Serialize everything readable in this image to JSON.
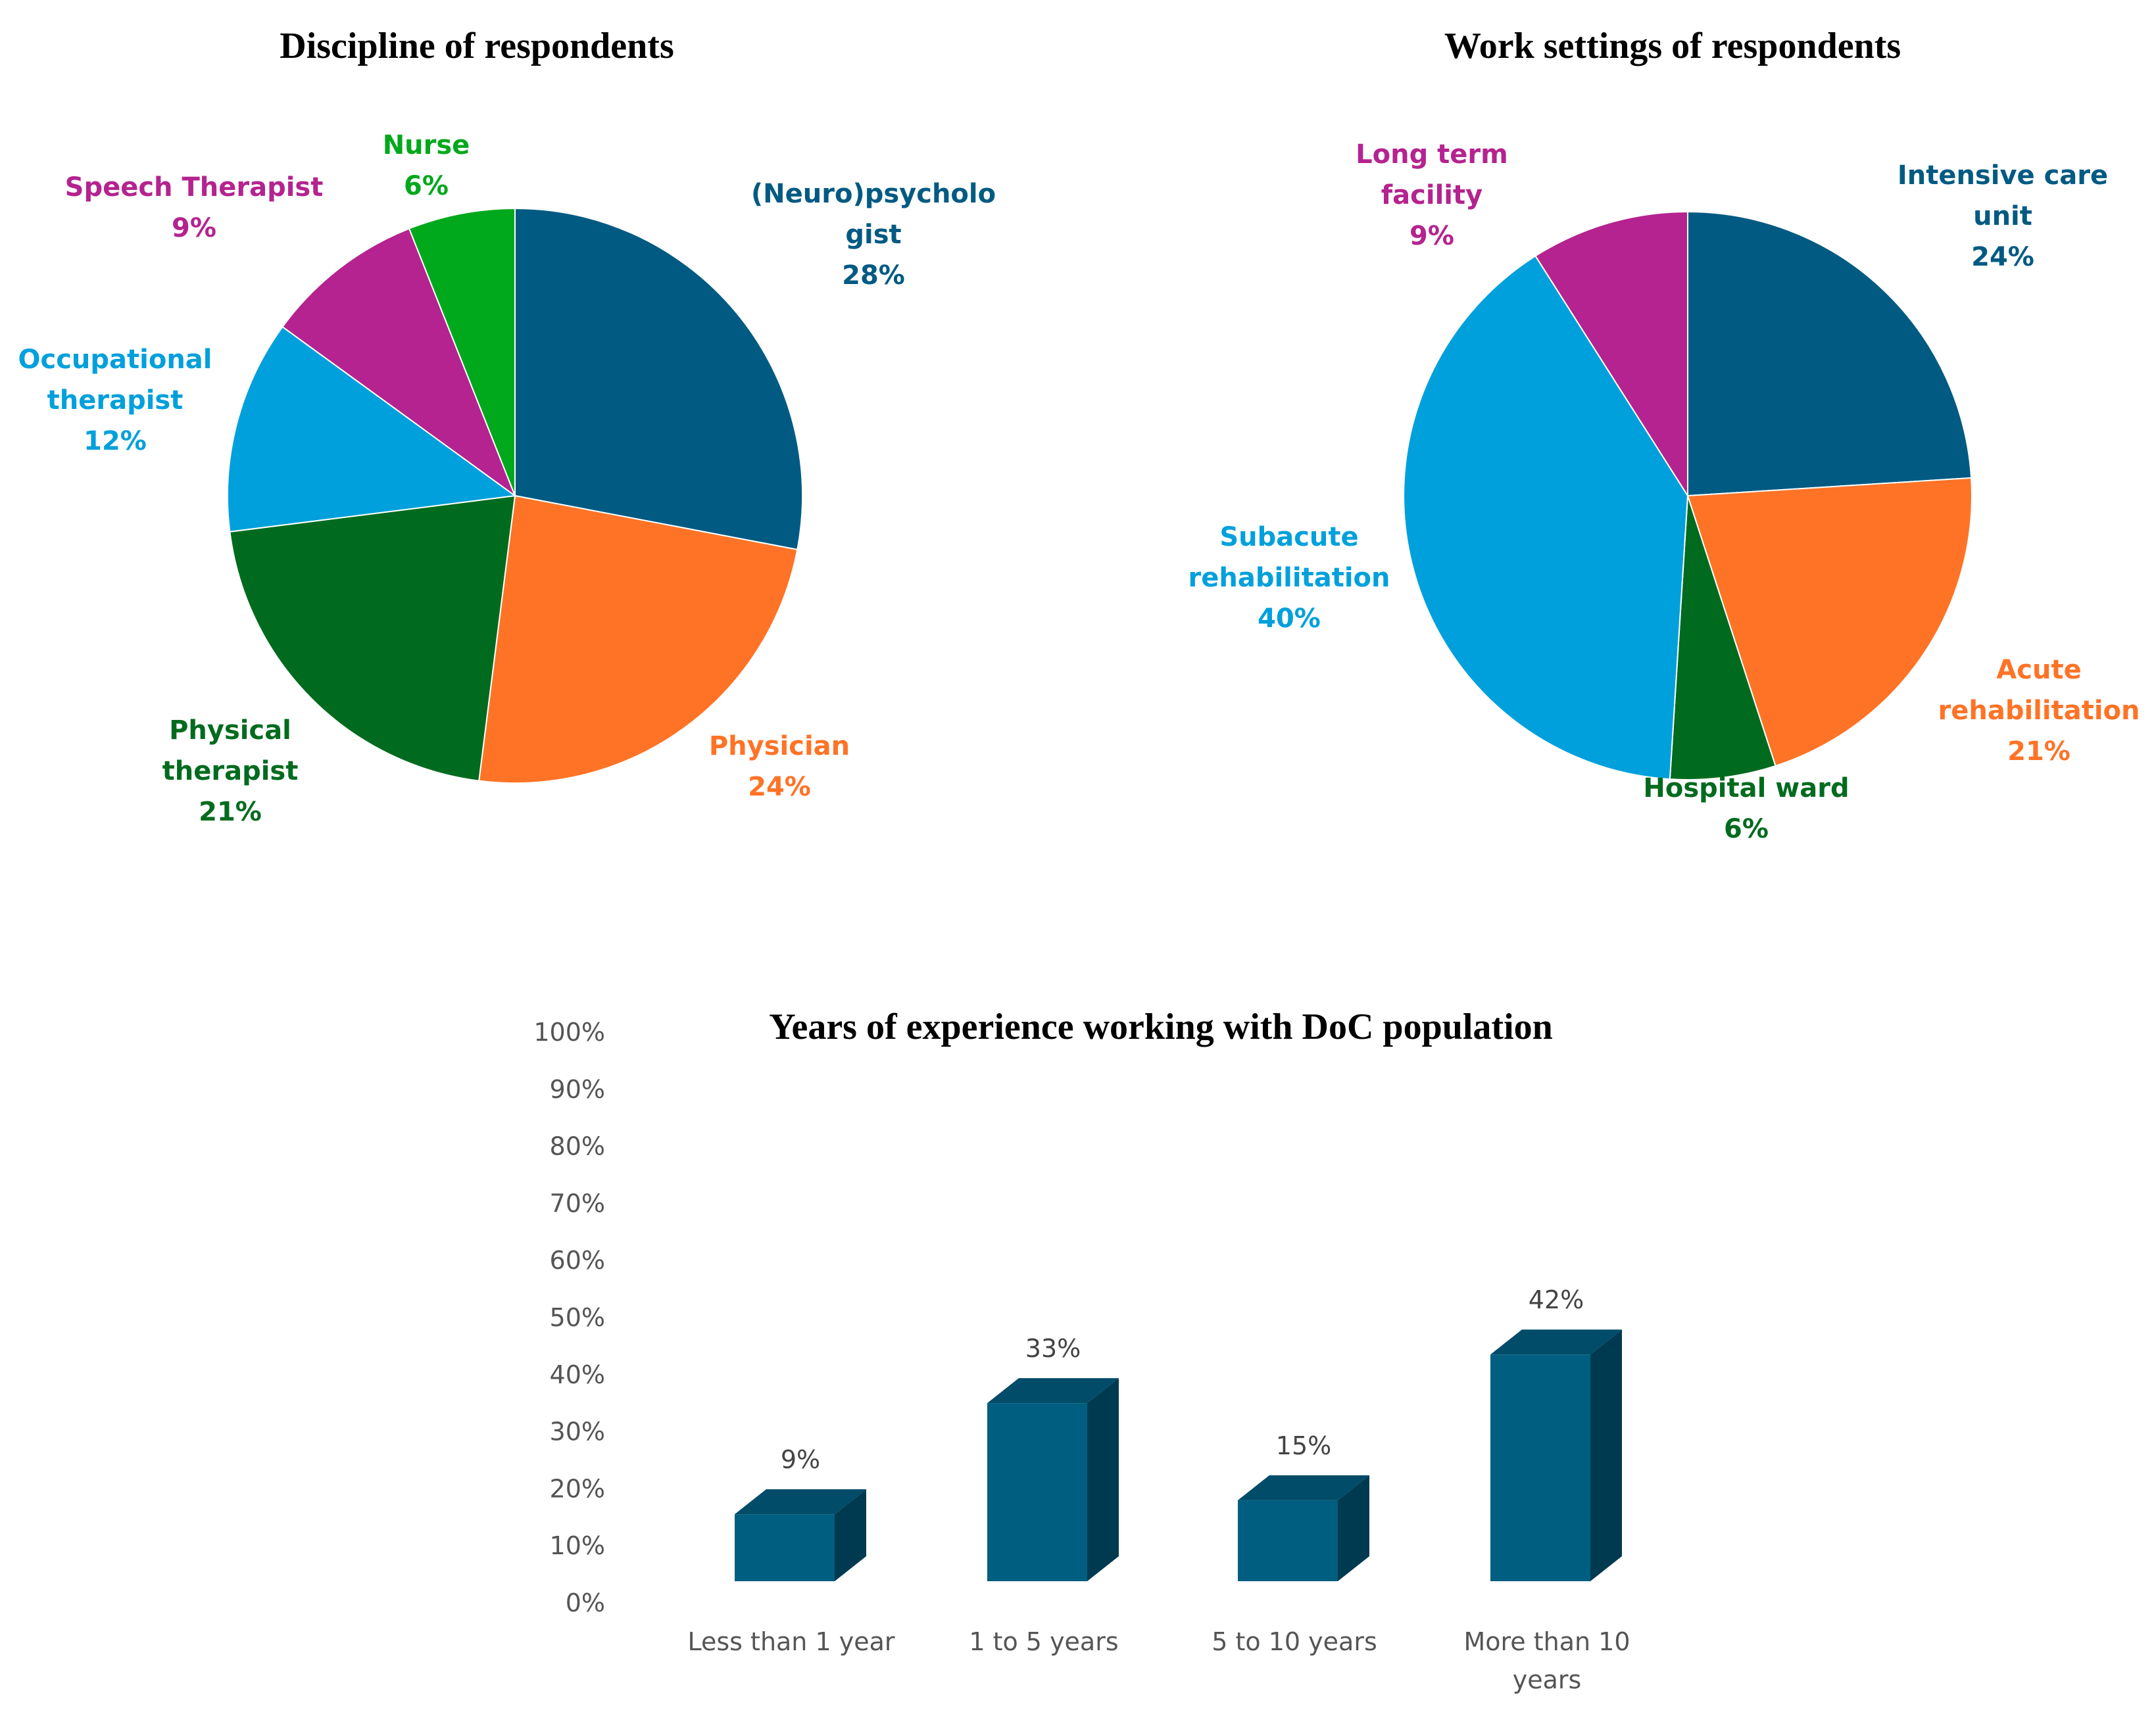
{
  "chart_data": [
    {
      "type": "pie",
      "title": "Discipline of respondents",
      "slices": [
        {
          "name": "Neuropsychologist",
          "label_lines": [
            "(Neuro)psycholo",
            "gist"
          ],
          "value_text": "28%",
          "value": 28,
          "color": "#005A82"
        },
        {
          "name": "Physician",
          "label_lines": [
            "Physician"
          ],
          "value_text": "24%",
          "value": 24,
          "color": "#FF7326"
        },
        {
          "name": "Physical therapist",
          "label_lines": [
            "Physical",
            "therapist"
          ],
          "value_text": "21%",
          "value": 21,
          "color": "#006B1E"
        },
        {
          "name": "Occupational therapist",
          "label_lines": [
            "Occupational",
            "therapist"
          ],
          "value_text": "12%",
          "value": 12,
          "color": "#00A0DC"
        },
        {
          "name": "Speech Therapist",
          "label_lines": [
            "Speech Therapist"
          ],
          "value_text": "9%",
          "value": 9,
          "color": "#B4238F"
        },
        {
          "name": "Nurse",
          "label_lines": [
            "Nurse"
          ],
          "value_text": "6%",
          "value": 6,
          "color": "#00A81C"
        }
      ]
    },
    {
      "type": "pie",
      "title": "Work settings of respondents",
      "slices": [
        {
          "name": "Intensive care unit",
          "label_lines": [
            "Intensive care",
            "unit"
          ],
          "value_text": "24%",
          "value": 24,
          "color": "#005A82"
        },
        {
          "name": "Acute rehabilitation",
          "label_lines": [
            "Acute",
            "rehabilitation"
          ],
          "value_text": "21%",
          "value": 21,
          "color": "#FF7326"
        },
        {
          "name": "Hospital ward",
          "label_lines": [
            "Hospital ward"
          ],
          "value_text": "6%",
          "value": 6,
          "color": "#006B1E"
        },
        {
          "name": "Subacute rehabilitation",
          "label_lines": [
            "Subacute",
            "rehabilitation"
          ],
          "value_text": "40%",
          "value": 40,
          "color": "#00A0DC"
        },
        {
          "name": "Long term facility",
          "label_lines": [
            "Long term",
            "facility"
          ],
          "value_text": "9%",
          "value": 9,
          "color": "#B4238F"
        }
      ]
    },
    {
      "type": "bar",
      "title": "Years of experience working with DoC population",
      "categories": [
        {
          "name": "Less than 1 year",
          "label_lines": [
            "Less than 1 year"
          ]
        },
        {
          "name": "1 to 5 years",
          "label_lines": [
            "1 to 5 years"
          ]
        },
        {
          "name": "5 to 10 years",
          "label_lines": [
            "5 to 10 years"
          ]
        },
        {
          "name": "More than 10 years",
          "label_lines": [
            "More than 10",
            "years"
          ]
        }
      ],
      "values": [
        9,
        33,
        15,
        42
      ],
      "data_labels": [
        "9%",
        "33%",
        "15%",
        "42%"
      ],
      "ylim": [
        0,
        100
      ],
      "yticks": [
        0,
        10,
        20,
        30,
        40,
        50,
        60,
        70,
        80,
        90,
        100
      ],
      "ytick_labels": [
        "0%",
        "10%",
        "20%",
        "30%",
        "40%",
        "50%",
        "60%",
        "70%",
        "80%",
        "90%",
        "100%"
      ],
      "colors": {
        "front": "#005F80",
        "top": "#004C69",
        "side": "#003A50"
      },
      "xlabel": "",
      "ylabel": "",
      "grid": false
    }
  ]
}
